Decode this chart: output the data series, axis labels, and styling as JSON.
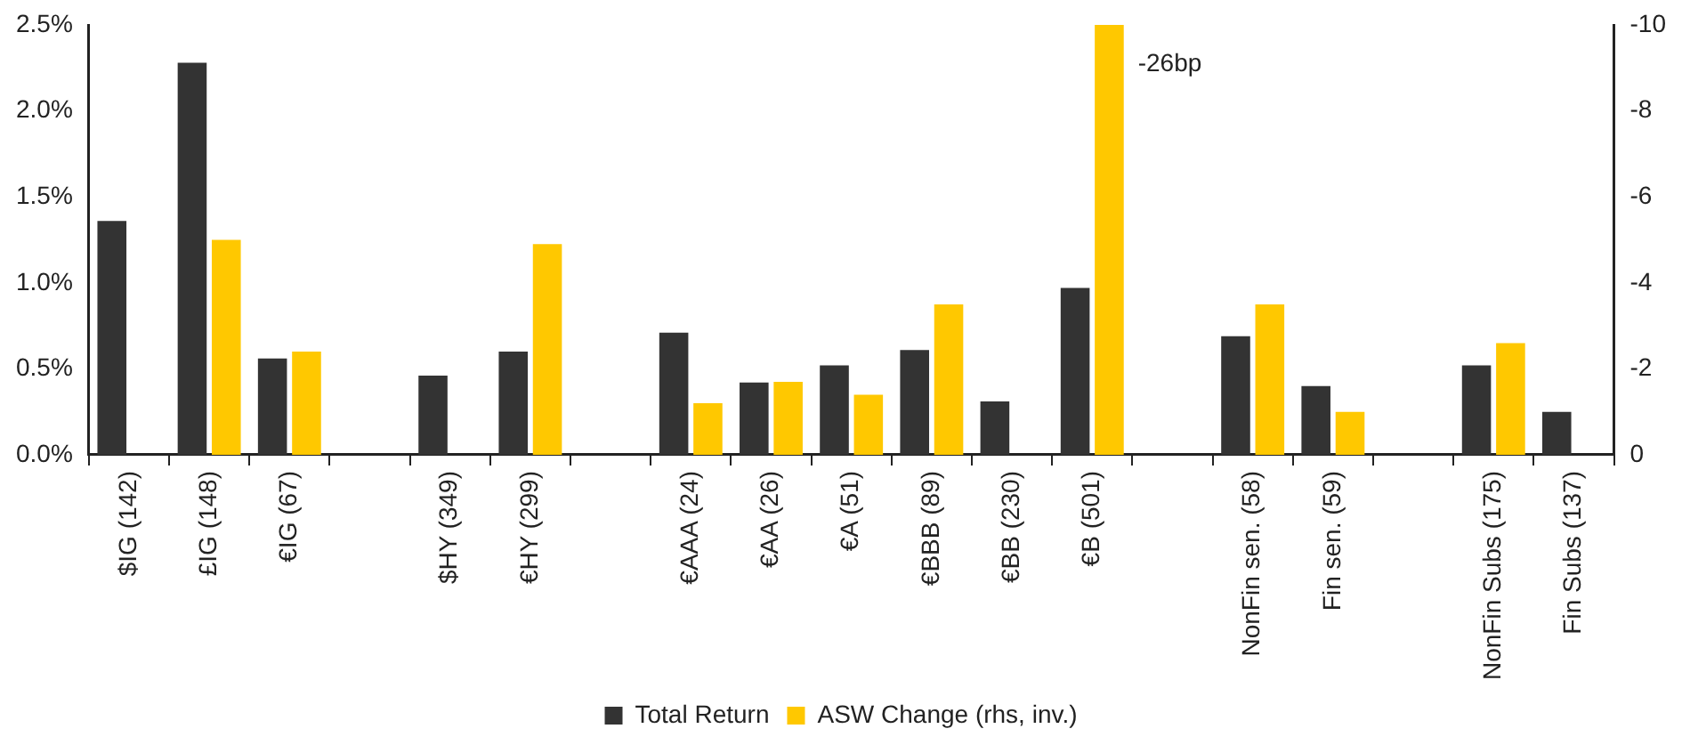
{
  "chart_data": {
    "type": "bar",
    "categories": [
      "$IG (142)",
      "£IG (148)",
      "€IG (67)",
      null,
      "$HY (349)",
      "€HY (299)",
      null,
      "€AAA (24)",
      "€AA (26)",
      "€A (51)",
      "€BBB (89)",
      "€BB (230)",
      "€B (501)",
      null,
      "NonFin sen. (58)",
      "Fin sen. (59)",
      null,
      "NonFin Subs (175)",
      "Fin Subs (137)"
    ],
    "series": [
      {
        "name": "Total Return",
        "color": "#333333",
        "values": [
          1.36,
          2.28,
          0.56,
          null,
          0.46,
          0.6,
          null,
          0.71,
          0.42,
          0.52,
          0.61,
          0.31,
          0.97,
          null,
          0.69,
          0.4,
          null,
          0.52,
          0.25
        ]
      },
      {
        "name": "ASW Change (rhs, inv.)",
        "color": "#ffc800",
        "axis": "y2",
        "values": [
          0,
          -5,
          -2.4,
          null,
          0,
          -4.9,
          null,
          -1.2,
          -1.7,
          -1.4,
          -3.5,
          0,
          -10,
          null,
          -3.5,
          -1,
          null,
          -2.6,
          0
        ]
      }
    ],
    "ylim": [
      0,
      2.5
    ],
    "yticks": [
      {
        "value": 0,
        "label": "0.0%"
      },
      {
        "value": 0.5,
        "label": "0.5%"
      },
      {
        "value": 1,
        "label": "1.0%"
      },
      {
        "value": 1.5,
        "label": "1.5%"
      },
      {
        "value": 2,
        "label": "2.0%"
      },
      {
        "value": 2.5,
        "label": "2.5%"
      }
    ],
    "y2lim": [
      0,
      -10
    ],
    "y2ticks": [
      0,
      -2,
      -4,
      -6,
      -8,
      -10
    ],
    "annotations": [
      "-26bp"
    ],
    "legend": "bottom",
    "grid": false
  }
}
